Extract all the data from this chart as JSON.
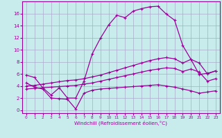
{
  "xlabel": "Windchill (Refroidissement éolien,°C)",
  "bg_color": "#c8ecec",
  "line_color": "#990099",
  "grid_color": "#aaaacc",
  "x_ticks": [
    0,
    1,
    2,
    3,
    4,
    5,
    6,
    7,
    8,
    9,
    10,
    11,
    12,
    13,
    14,
    15,
    16,
    17,
    18,
    19,
    20,
    21,
    22,
    23
  ],
  "y_ticks": [
    0,
    2,
    4,
    6,
    8,
    10,
    12,
    14,
    16
  ],
  "ylim": [
    -0.5,
    18.0
  ],
  "xlim": [
    -0.5,
    23.5
  ],
  "line1_x": [
    0,
    1,
    2,
    3,
    4,
    5,
    6,
    7,
    8,
    9,
    10,
    11,
    12,
    13,
    14,
    15,
    16,
    17,
    18,
    19,
    20,
    21,
    22,
    23
  ],
  "line1_y": [
    5.8,
    5.4,
    3.7,
    2.5,
    3.7,
    2.0,
    2.0,
    4.8,
    9.3,
    11.9,
    14.1,
    15.7,
    15.3,
    16.4,
    16.8,
    17.1,
    17.2,
    15.9,
    14.9,
    10.7,
    8.4,
    5.9,
    6.1,
    6.5
  ],
  "line2_x": [
    0,
    1,
    2,
    3,
    4,
    5,
    6,
    7,
    8,
    9,
    10,
    11,
    12,
    13,
    14,
    15,
    16,
    17,
    18,
    19,
    20,
    21,
    22,
    23
  ],
  "line2_y": [
    4.0,
    4.1,
    4.3,
    4.5,
    4.7,
    4.9,
    5.0,
    5.2,
    5.5,
    5.8,
    6.2,
    6.6,
    7.0,
    7.4,
    7.8,
    8.2,
    8.5,
    8.7,
    8.5,
    7.8,
    8.4,
    7.8,
    6.0,
    6.5
  ],
  "line3_x": [
    0,
    1,
    2,
    3,
    4,
    5,
    6,
    7,
    8,
    9,
    10,
    11,
    12,
    13,
    14,
    15,
    16,
    17,
    18,
    19,
    20,
    21,
    22,
    23
  ],
  "line3_y": [
    3.5,
    3.6,
    3.7,
    3.8,
    3.9,
    4.0,
    4.1,
    4.3,
    4.5,
    4.8,
    5.1,
    5.4,
    5.7,
    6.0,
    6.3,
    6.6,
    6.8,
    7.0,
    6.9,
    6.4,
    6.8,
    6.3,
    4.8,
    5.2
  ],
  "line4_x": [
    0,
    1,
    2,
    3,
    4,
    5,
    6,
    7,
    8,
    9,
    10,
    11,
    12,
    13,
    14,
    15,
    16,
    17,
    18,
    19,
    20,
    21,
    22,
    23
  ],
  "line4_y": [
    4.5,
    3.8,
    3.5,
    2.0,
    1.9,
    1.8,
    0.2,
    2.8,
    3.3,
    3.5,
    3.6,
    3.7,
    3.8,
    3.9,
    4.0,
    4.1,
    4.2,
    4.0,
    3.8,
    3.5,
    3.2,
    2.8,
    3.0,
    3.2
  ]
}
